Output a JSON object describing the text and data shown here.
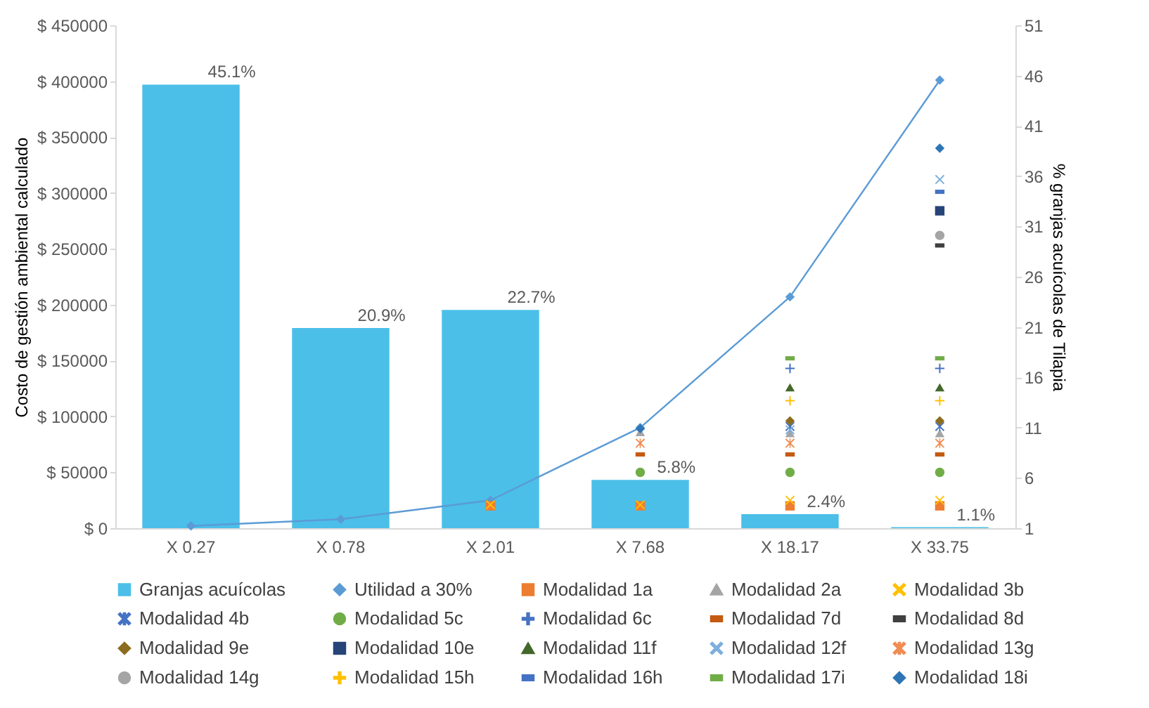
{
  "chart_data": {
    "type": "bar",
    "ylabel": "Costo de gestión ambiental calculado",
    "y2label": "% granjas acuícolas de Tilapia",
    "categories": [
      "X 0.27",
      "X 0.78",
      "X 2.01",
      "X 7.68",
      "X 18.17",
      "X 33.75"
    ],
    "ylim": [
      0,
      450000
    ],
    "yticks": [
      {
        "value": 0,
        "label": "$ 0"
      },
      {
        "value": 50000,
        "label": "$ 50000"
      },
      {
        "value": 100000,
        "label": "$ 100000"
      },
      {
        "value": 150000,
        "label": "$ 150000"
      },
      {
        "value": 200000,
        "label": "$ 200000"
      },
      {
        "value": 250000,
        "label": "$ 250000"
      },
      {
        "value": 300000,
        "label": "$ 300000"
      },
      {
        "value": 350000,
        "label": "$ 350000"
      },
      {
        "value": 400000,
        "label": "$ 400000"
      },
      {
        "value": 450000,
        "label": "$ 450000"
      }
    ],
    "y2lim": [
      1,
      51
    ],
    "y2ticks": [
      1,
      6,
      11,
      16,
      21,
      26,
      31,
      36,
      41,
      46,
      51
    ],
    "grid": false,
    "legend": "bottom",
    "series": [
      {
        "name": "Granjas acuícolas",
        "axis": "y2",
        "color": "#4bbfe8",
        "values": [
          45.1,
          20.9,
          22.7,
          5.8,
          2.4,
          1.1
        ],
        "value_labels": [
          "45.1%",
          "20.9%",
          "22.7%",
          "5.8%",
          "2.4%",
          "1.1%"
        ]
      },
      {
        "name": "Utilidad a 30%",
        "type": "line",
        "color": "#5b9bd5",
        "marker": "diamond",
        "line_style": "solid",
        "values": [
          2000,
          8000,
          25000,
          90000,
          207000,
          401000
        ]
      },
      {
        "name": "Modalidad 1a",
        "type": "scatter",
        "color": "#ed7d31",
        "marker": "square",
        "values": [
          null,
          null,
          20000,
          20000,
          20000,
          20000
        ]
      },
      {
        "name": "Modalidad 2a",
        "type": "scatter",
        "color": "#a5a5a5",
        "marker": "triangle",
        "values": [
          null,
          null,
          null,
          86000,
          85000,
          85000
        ]
      },
      {
        "name": "Modalidad 3b",
        "type": "scatter",
        "color": "#ffc000",
        "marker": "cross",
        "values": [
          null,
          null,
          21000,
          21000,
          25000,
          25000
        ]
      },
      {
        "name": "Modalidad 4b",
        "type": "scatter",
        "color": "#4472c4",
        "marker": "star",
        "values": [
          null,
          null,
          null,
          null,
          91000,
          91000
        ]
      },
      {
        "name": "Modalidad 5c",
        "type": "scatter",
        "color": "#70ad47",
        "marker": "circle",
        "values": [
          null,
          null,
          null,
          50000,
          50000,
          50000
        ]
      },
      {
        "name": "Modalidad 6c",
        "type": "scatter",
        "color": "#4472c4",
        "marker": "plus",
        "values": [
          null,
          null,
          null,
          null,
          143000,
          143000
        ]
      },
      {
        "name": "Modalidad 7d",
        "type": "scatter",
        "color": "#c55a11",
        "values": [
          null,
          null,
          null,
          66000,
          66000,
          66000
        ]
      },
      {
        "name": "Modalidad 8d",
        "type": "scatter",
        "color": "#404040",
        "values": [
          null,
          null,
          null,
          null,
          null,
          253000
        ]
      },
      {
        "name": "Modalidad 9e",
        "type": "scatter",
        "color": "#8c6d1f",
        "marker": "diamond",
        "values": [
          null,
          null,
          null,
          null,
          96000,
          96000
        ]
      },
      {
        "name": "Modalidad 10e",
        "type": "scatter",
        "color": "#264478",
        "marker": "square",
        "values": [
          null,
          null,
          null,
          null,
          null,
          284000
        ]
      },
      {
        "name": "Modalidad 11f",
        "type": "scatter",
        "color": "#43682b",
        "marker": "triangle",
        "values": [
          null,
          null,
          null,
          null,
          126000,
          126000
        ]
      },
      {
        "name": "Modalidad 12f",
        "type": "scatter",
        "color": "#7cafdd",
        "marker": "cross",
        "values": [
          null,
          null,
          null,
          null,
          88000,
          312000
        ]
      },
      {
        "name": "Modalidad 13g",
        "type": "scatter",
        "color": "#f08c54",
        "marker": "star",
        "values": [
          null,
          null,
          null,
          76000,
          76000,
          76000
        ]
      },
      {
        "name": "Modalidad 14g",
        "type": "scatter",
        "color": "#a5a5a5",
        "marker": "circle",
        "values": [
          null,
          null,
          null,
          null,
          null,
          262000
        ]
      },
      {
        "name": "Modalidad 15h",
        "type": "scatter",
        "color": "#ffc000",
        "marker": "plus",
        "values": [
          null,
          null,
          null,
          null,
          114000,
          114000
        ]
      },
      {
        "name": "Modalidad 16h",
        "type": "scatter",
        "color": "#4472c4",
        "values": [
          null,
          null,
          null,
          null,
          null,
          301000
        ]
      },
      {
        "name": "Modalidad 17i",
        "type": "scatter",
        "color": "#70ad47",
        "values": [
          null,
          null,
          null,
          null,
          152000,
          152000
        ]
      },
      {
        "name": "Modalidad 18i",
        "type": "scatter",
        "color": "#2e75b6",
        "marker": "diamond",
        "values": [
          null,
          null,
          null,
          89000,
          null,
          340000
        ]
      }
    ]
  }
}
